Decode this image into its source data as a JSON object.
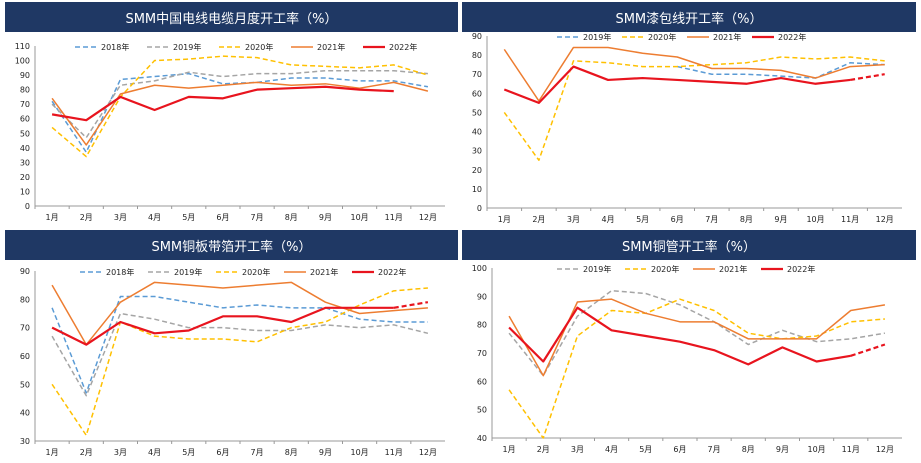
{
  "chart_data": [
    {
      "type": "line",
      "title": "SMM中国电线电缆月度开工率（%）",
      "categories": [
        "1月",
        "2月",
        "3月",
        "4月",
        "5月",
        "6月",
        "7月",
        "8月",
        "9月",
        "10月",
        "11月",
        "12月"
      ],
      "ylim": [
        0,
        110
      ],
      "yticks": [
        0,
        10,
        20,
        30,
        40,
        50,
        60,
        70,
        80,
        90,
        100,
        110
      ],
      "grid": false,
      "legend": "top",
      "series": [
        {
          "name": "2018年",
          "color": "#5b9bd5",
          "dash": "dash",
          "values": [
            72,
            37,
            87,
            89,
            91,
            84,
            85,
            88,
            88,
            86,
            86,
            82
          ]
        },
        {
          "name": "2019年",
          "color": "#a5a5a5",
          "dash": "dash",
          "values": [
            70,
            47,
            83,
            86,
            92,
            89,
            91,
            91,
            93,
            93,
            93,
            91
          ]
        },
        {
          "name": "2020年",
          "color": "#ffc000",
          "dash": "dash",
          "values": [
            54,
            34,
            75,
            100,
            101,
            103,
            102,
            97,
            96,
            95,
            97,
            90
          ]
        },
        {
          "name": "2021年",
          "color": "#ed7d31",
          "dash": "solid",
          "values": [
            74,
            42,
            77,
            83,
            81,
            83,
            85,
            83,
            84,
            81,
            85,
            79
          ]
        },
        {
          "name": "2022年",
          "color": "#e8141e",
          "dash": "solid",
          "values": [
            63,
            59,
            75,
            66,
            75,
            74,
            80,
            81,
            82,
            80,
            79,
            null
          ]
        }
      ]
    },
    {
      "type": "line",
      "title": "SMM漆包线开工率（%）",
      "categories": [
        "1月",
        "2月",
        "3月",
        "4月",
        "5月",
        "6月",
        "7月",
        "8月",
        "9月",
        "10月",
        "11月",
        "12月"
      ],
      "ylim": [
        0,
        90
      ],
      "yticks": [
        0,
        10,
        20,
        30,
        40,
        50,
        60,
        70,
        80,
        90
      ],
      "grid": false,
      "legend": "top",
      "series": [
        {
          "name": "2019年",
          "color": "#5b9bd5",
          "dash": "dash",
          "values": [
            null,
            null,
            null,
            null,
            null,
            74,
            70,
            70,
            69,
            68,
            76,
            75
          ]
        },
        {
          "name": "2020年",
          "color": "#ffc000",
          "dash": "dash",
          "values": [
            50,
            25,
            77,
            76,
            74,
            74,
            75,
            76,
            79,
            78,
            79,
            77
          ]
        },
        {
          "name": "2021年",
          "color": "#ed7d31",
          "dash": "solid",
          "values": [
            83,
            56,
            84,
            84,
            81,
            79,
            73,
            73,
            72,
            68,
            74,
            75
          ]
        },
        {
          "name": "2022年",
          "color": "#e8141e",
          "dash": "solid",
          "values": [
            62,
            55,
            74,
            67,
            68,
            67,
            66,
            65,
            68,
            65,
            67,
            null
          ],
          "forecast": [
            null,
            null,
            null,
            null,
            null,
            null,
            null,
            null,
            null,
            null,
            67,
            70
          ]
        }
      ]
    },
    {
      "type": "line",
      "title": "SMM铜板带箔开工率（%）",
      "categories": [
        "1月",
        "2月",
        "3月",
        "4月",
        "5月",
        "6月",
        "7月",
        "8月",
        "9月",
        "10月",
        "11月",
        "12月"
      ],
      "ylim": [
        30,
        90
      ],
      "yticks": [
        30,
        40,
        50,
        60,
        70,
        80,
        90
      ],
      "grid": false,
      "legend": "top",
      "series": [
        {
          "name": "2018年",
          "color": "#5b9bd5",
          "dash": "dash",
          "values": [
            77,
            47,
            81,
            81,
            79,
            77,
            78,
            77,
            77,
            73,
            72,
            72
          ]
        },
        {
          "name": "2019年",
          "color": "#a5a5a5",
          "dash": "dash",
          "values": [
            67,
            46,
            75,
            73,
            70,
            70,
            69,
            69,
            71,
            70,
            71,
            68
          ]
        },
        {
          "name": "2020年",
          "color": "#ffc000",
          "dash": "dash",
          "values": [
            50,
            32,
            72,
            67,
            66,
            66,
            65,
            70,
            72,
            78,
            83,
            84
          ]
        },
        {
          "name": "2021年",
          "color": "#ed7d31",
          "dash": "solid",
          "values": [
            85,
            64,
            79,
            86,
            85,
            84,
            85,
            86,
            79,
            75,
            76,
            77
          ]
        },
        {
          "name": "2022年",
          "color": "#e8141e",
          "dash": "solid",
          "values": [
            70,
            64,
            72,
            68,
            69,
            74,
            74,
            72,
            77,
            77,
            77,
            null
          ],
          "forecast": [
            null,
            null,
            null,
            null,
            null,
            null,
            null,
            null,
            null,
            null,
            77,
            79
          ]
        }
      ]
    },
    {
      "type": "line",
      "title": "SMM铜管开工率（%）",
      "categories": [
        "1月",
        "2月",
        "3月",
        "4月",
        "5月",
        "6月",
        "7月",
        "8月",
        "9月",
        "10月",
        "11月",
        "12月"
      ],
      "ylim": [
        40,
        100
      ],
      "yticks": [
        40,
        50,
        60,
        70,
        80,
        90,
        100
      ],
      "grid": false,
      "legend": "top",
      "series": [
        {
          "name": "2019年",
          "color": "#a5a5a5",
          "dash": "dash",
          "values": [
            77,
            62,
            83,
            92,
            91,
            87,
            81,
            73,
            78,
            74,
            75,
            77
          ]
        },
        {
          "name": "2020年",
          "color": "#ffc000",
          "dash": "dash",
          "values": [
            57,
            40,
            76,
            85,
            84,
            89,
            85,
            77,
            75,
            76,
            81,
            82
          ]
        },
        {
          "name": "2021年",
          "color": "#ed7d31",
          "dash": "solid",
          "values": [
            83,
            62,
            88,
            89,
            84,
            81,
            81,
            75,
            75,
            75,
            85,
            87
          ]
        },
        {
          "name": "2022年",
          "color": "#e8141e",
          "dash": "solid",
          "values": [
            79,
            67,
            86,
            78,
            76,
            74,
            71,
            66,
            72,
            67,
            69,
            null
          ],
          "forecast": [
            null,
            null,
            null,
            null,
            null,
            null,
            null,
            null,
            null,
            null,
            69,
            73
          ]
        }
      ]
    }
  ]
}
